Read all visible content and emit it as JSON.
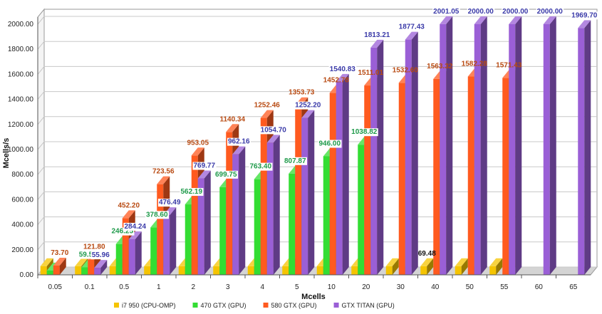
{
  "chart_data": {
    "type": "bar",
    "title": "",
    "xlabel": "Mcells",
    "ylabel": "Mcells/s",
    "ylim": [
      0,
      2000
    ],
    "yticks": [
      "0.00",
      "200.00",
      "400.00",
      "600.00",
      "800.00",
      "1000.00",
      "1200.00",
      "1400.00",
      "1600.00",
      "1800.00",
      "2000.00"
    ],
    "categories": [
      "0.05",
      "0.1",
      "0.5",
      "1",
      "2",
      "3",
      "4",
      "5",
      "10",
      "20",
      "30",
      "40",
      "50",
      "55",
      "60",
      "65"
    ],
    "legend_position": "bottom",
    "grid": true,
    "series": [
      {
        "name": "i7 950 (CPU-OMP)",
        "color": "#f5c400",
        "values": [
          69.48,
          69.48,
          69.48,
          69.48,
          69.48,
          69.48,
          69.48,
          69.48,
          69.48,
          69.48,
          69.48,
          69.48,
          69.48,
          69.48,
          null,
          null
        ],
        "labels": [
          "",
          "",
          "",
          "",
          "",
          "",
          "",
          "",
          "",
          "",
          "",
          "69.48",
          "",
          "",
          "",
          ""
        ]
      },
      {
        "name": "470 GTX (GPU)",
        "color": "#33dd33",
        "values": [
          35,
          59.5,
          246.25,
          378.6,
          562.19,
          699.75,
          763.4,
          807.87,
          946.0,
          1038.82,
          null,
          null,
          null,
          null,
          null,
          null
        ],
        "labels": [
          "",
          "59.50",
          "246.25",
          "378.60",
          "562.19",
          "699.75",
          "763.40",
          "807.87",
          "946.00",
          "1038.82",
          "",
          "",
          "",
          "",
          "",
          ""
        ]
      },
      {
        "name": "580 GTX (GPU)",
        "color": "#ff5a1f",
        "values": [
          73.7,
          121.8,
          452.2,
          723.56,
          953.05,
          1140.34,
          1252.46,
          1353.73,
          1452.78,
          1511.01,
          1532.6,
          1563.32,
          1582.28,
          1571.43,
          null,
          null
        ],
        "labels": [
          "73.70",
          "121.80",
          "452.20",
          "723.56",
          "953.05",
          "1140.34",
          "1252.46",
          "1353.73",
          "1452.78",
          "1511.01",
          "1532.60",
          "1563.32",
          "1582.28",
          "1571.43",
          "",
          ""
        ]
      },
      {
        "name": "GTX TITAN (GPU)",
        "color": "#9a5fd6",
        "values": [
          null,
          55.96,
          284.24,
          476.49,
          769.77,
          962.16,
          1054.7,
          1252.2,
          1540.83,
          1813.21,
          1877.43,
          2001.05,
          2000.0,
          2000.0,
          2000.0,
          1969.7
        ],
        "labels": [
          "",
          "55.96",
          "284.24",
          "476.49",
          "769.77",
          "962.16",
          "1054.70",
          "1252.20",
          "1540.83",
          "1813.21",
          "1877.43",
          "2001.05",
          "2000.00",
          "2000.00",
          "2000.00",
          "1969.70"
        ]
      }
    ]
  }
}
